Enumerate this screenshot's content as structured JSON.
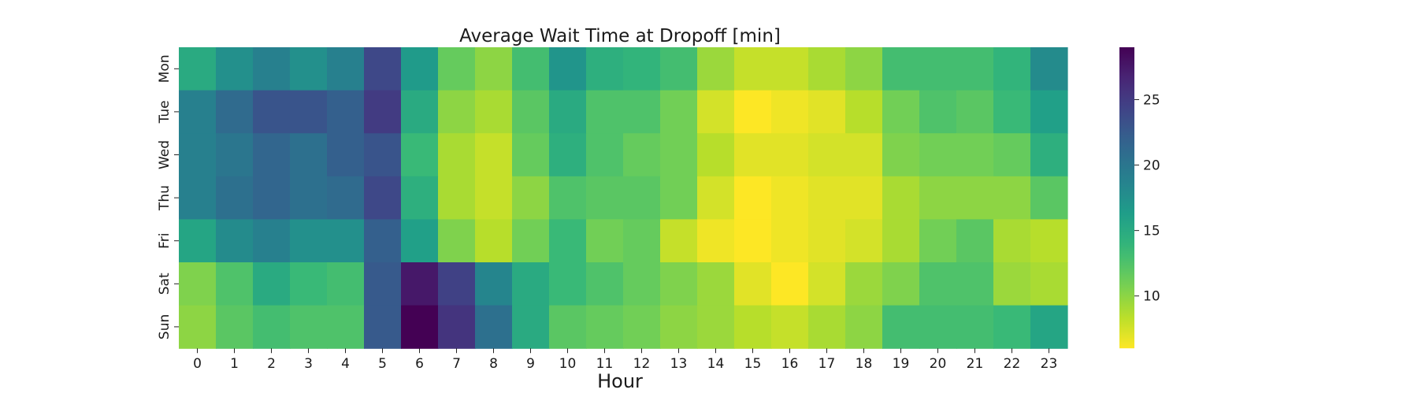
{
  "chart_data": {
    "type": "heatmap",
    "title": "Average Wait Time at Dropoff [min]",
    "xlabel": "Hour",
    "ylabel": "",
    "x": [
      "0",
      "1",
      "2",
      "3",
      "4",
      "5",
      "6",
      "7",
      "8",
      "9",
      "10",
      "11",
      "12",
      "13",
      "14",
      "15",
      "16",
      "17",
      "18",
      "19",
      "20",
      "21",
      "22",
      "23"
    ],
    "y": [
      "Mon",
      "Tue",
      "Wed",
      "Thu",
      "Fri",
      "Sat",
      "Sun"
    ],
    "values": [
      [
        15.0,
        17.5,
        19.0,
        17.5,
        19.0,
        24.0,
        16.5,
        11.5,
        10.0,
        13.0,
        17.0,
        14.5,
        14.0,
        13.0,
        9.5,
        8.0,
        8.0,
        9.0,
        10.0,
        13.0,
        13.0,
        13.0,
        14.0,
        18.0
      ],
      [
        19.0,
        21.0,
        23.0,
        23.0,
        22.0,
        25.0,
        15.0,
        10.0,
        9.0,
        12.0,
        15.0,
        12.5,
        12.5,
        11.0,
        7.5,
        6.0,
        6.5,
        7.0,
        8.5,
        11.0,
        12.5,
        12.0,
        13.5,
        16.0
      ],
      [
        19.0,
        20.0,
        21.5,
        20.5,
        22.0,
        23.0,
        13.5,
        9.0,
        8.0,
        11.5,
        14.5,
        12.5,
        11.5,
        11.0,
        8.5,
        7.0,
        7.0,
        7.5,
        7.5,
        10.5,
        11.0,
        11.0,
        11.5,
        14.5
      ],
      [
        19.0,
        20.5,
        21.5,
        20.5,
        21.0,
        24.0,
        14.5,
        9.0,
        8.0,
        10.0,
        12.5,
        12.0,
        12.0,
        11.0,
        7.5,
        6.0,
        6.5,
        7.0,
        7.0,
        9.0,
        10.0,
        10.0,
        10.0,
        12.0
      ],
      [
        15.5,
        18.0,
        19.0,
        17.5,
        17.5,
        22.0,
        16.0,
        10.5,
        8.5,
        11.0,
        13.5,
        11.0,
        11.5,
        8.0,
        6.5,
        6.0,
        6.5,
        7.0,
        7.5,
        9.0,
        11.0,
        12.0,
        9.0,
        8.5
      ],
      [
        10.5,
        12.5,
        15.0,
        13.5,
        13.0,
        22.5,
        27.5,
        24.5,
        18.5,
        15.0,
        13.5,
        12.5,
        11.5,
        10.5,
        9.5,
        7.0,
        6.0,
        7.5,
        9.5,
        10.5,
        12.5,
        12.5,
        9.5,
        9.0
      ],
      [
        10.0,
        12.0,
        13.0,
        12.5,
        12.5,
        22.5,
        29.0,
        25.5,
        20.5,
        15.0,
        12.0,
        11.5,
        11.0,
        10.0,
        9.5,
        8.5,
        8.0,
        9.0,
        10.0,
        13.0,
        13.0,
        13.0,
        13.5,
        15.5
      ]
    ],
    "colormap": "viridis_r",
    "vmin": 6,
    "vmax": 29,
    "colorbar_ticks": [
      10,
      15,
      20,
      25
    ]
  }
}
